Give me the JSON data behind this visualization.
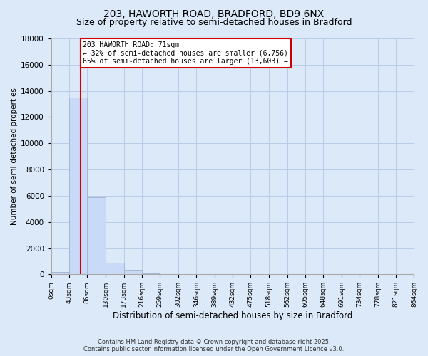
{
  "title": "203, HAWORTH ROAD, BRADFORD, BD9 6NX",
  "subtitle": "Size of property relative to semi-detached houses in Bradford",
  "xlabel": "Distribution of semi-detached houses by size in Bradford",
  "ylabel": "Number of semi-detached properties",
  "bar_values": [
    200,
    13500,
    5900,
    900,
    350,
    100,
    40,
    15,
    5,
    3,
    2,
    1,
    1,
    0,
    0,
    0,
    0,
    0,
    0,
    0
  ],
  "bin_edges": [
    0,
    43,
    86,
    130,
    173,
    216,
    259,
    302,
    346,
    389,
    432,
    475,
    518,
    562,
    605,
    648,
    691,
    734,
    778,
    821,
    864
  ],
  "bin_labels": [
    "0sqm",
    "43sqm",
    "86sqm",
    "130sqm",
    "173sqm",
    "216sqm",
    "259sqm",
    "302sqm",
    "346sqm",
    "389sqm",
    "432sqm",
    "475sqm",
    "518sqm",
    "562sqm",
    "605sqm",
    "648sqm",
    "691sqm",
    "734sqm",
    "778sqm",
    "821sqm",
    "864sqm"
  ],
  "ylim": [
    0,
    18000
  ],
  "yticks": [
    0,
    2000,
    4000,
    6000,
    8000,
    10000,
    12000,
    14000,
    16000,
    18000
  ],
  "bar_color": "#c9daf8",
  "bar_edgecolor": "#a4b8d4",
  "property_size": 71,
  "property_label": "203 HAWORTH ROAD: 71sqm",
  "pct_smaller": 32,
  "pct_larger": 65,
  "count_smaller": 6756,
  "count_larger": 13603,
  "vline_color": "#cc0000",
  "annotation_box_color": "#cc0000",
  "background_color": "#dce9f9",
  "plot_bg_color": "#dce9f9",
  "footer_line1": "Contains HM Land Registry data © Crown copyright and database right 2025.",
  "footer_line2": "Contains public sector information licensed under the Open Government Licence v3.0.",
  "title_fontsize": 10,
  "subtitle_fontsize": 9,
  "grid_color": "#b8cde8"
}
